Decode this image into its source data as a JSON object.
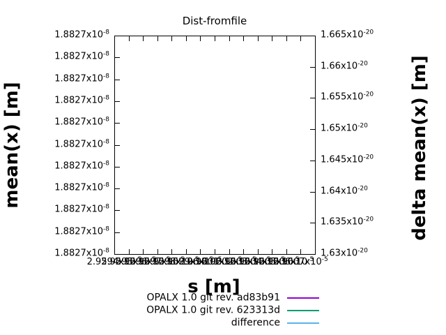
{
  "title": "Dist-fromfile",
  "axes": {
    "x": {
      "label": "s [m]",
      "ticks": [
        {
          "m": "2.9594x10",
          "e": "-5"
        },
        {
          "m": "2.9595x10",
          "e": "-5"
        },
        {
          "m": "2.9596x10",
          "e": "-5"
        },
        {
          "m": "2.9597x10",
          "e": "-5"
        },
        {
          "m": "2.9598x10",
          "e": "-5"
        },
        {
          "m": "2.9599x10",
          "e": "-5"
        },
        {
          "m": "2.96x10",
          "e": "-5"
        },
        {
          "m": "2.9601x10",
          "e": "-5"
        },
        {
          "m": "2.9602x10",
          "e": "-5"
        },
        {
          "m": "2.9603x10",
          "e": "-5"
        },
        {
          "m": "2.9604x10",
          "e": "-5"
        },
        {
          "m": "2.9605x10",
          "e": "-5"
        },
        {
          "m": "2.9606x10",
          "e": "-5"
        },
        {
          "m": "2.9607x10",
          "e": "-5"
        }
      ]
    },
    "y_left": {
      "label": "mean(x) [m]",
      "ticks": [
        {
          "m": "1.8827x10",
          "e": "-8"
        },
        {
          "m": "1.8827x10",
          "e": "-8"
        },
        {
          "m": "1.8827x10",
          "e": "-8"
        },
        {
          "m": "1.8827x10",
          "e": "-8"
        },
        {
          "m": "1.8827x10",
          "e": "-8"
        },
        {
          "m": "1.8827x10",
          "e": "-8"
        },
        {
          "m": "1.8827x10",
          "e": "-8"
        },
        {
          "m": "1.8827x10",
          "e": "-8"
        },
        {
          "m": "1.8827x10",
          "e": "-8"
        },
        {
          "m": "1.8827x10",
          "e": "-8"
        },
        {
          "m": "1.8827x10",
          "e": "-8"
        }
      ]
    },
    "y_right": {
      "label": "delta mean(x) [m]",
      "ticks": [
        {
          "m": "1.665x10",
          "e": "-20"
        },
        {
          "m": "1.66x10",
          "e": "-20"
        },
        {
          "m": "1.655x10",
          "e": "-20"
        },
        {
          "m": "1.65x10",
          "e": "-20"
        },
        {
          "m": "1.645x10",
          "e": "-20"
        },
        {
          "m": "1.64x10",
          "e": "-20"
        },
        {
          "m": "1.635x10",
          "e": "-20"
        },
        {
          "m": "1.63x10",
          "e": "-20"
        }
      ]
    }
  },
  "legend": {
    "items": [
      {
        "label": "OPALX 1.0 git rev. ad83b91",
        "color": "#9400d3"
      },
      {
        "label": "OPALX 1.0 git rev. 623313d",
        "color": "#009e73"
      },
      {
        "label": "difference",
        "color": "#56b4e9"
      }
    ]
  },
  "colors": {
    "background": "#ffffff",
    "axis": "#000000",
    "series_purple": "#9400d3",
    "series_green": "#009e73",
    "series_blue": "#56b4e9"
  },
  "chart_data": {
    "type": "line",
    "title": "Dist-fromfile",
    "xlabel": "s [m]",
    "ylabel_left": "mean(x) [m]",
    "ylabel_right": "delta mean(x) [m]",
    "x_ticks_displayed": [
      "2.9594x10^-5",
      "2.9595x10^-5",
      "2.9596x10^-5",
      "2.9597x10^-5",
      "2.9598x10^-5",
      "2.9599x10^-5",
      "2.96x10^-5",
      "2.9601x10^-5",
      "2.9602x10^-5",
      "2.9603x10^-5",
      "2.9604x10^-5",
      "2.9605x10^-5",
      "2.9606x10^-5",
      "2.9607x10^-5"
    ],
    "y_left_ticks_displayed": [
      "1.8827x10^-8",
      "1.8827x10^-8",
      "1.8827x10^-8",
      "1.8827x10^-8",
      "1.8827x10^-8",
      "1.8827x10^-8",
      "1.8827x10^-8",
      "1.8827x10^-8",
      "1.8827x10^-8",
      "1.8827x10^-8",
      "1.8827x10^-8"
    ],
    "y_right_ticks_displayed": [
      "1.665x10^-20",
      "1.66x10^-20",
      "1.655x10^-20",
      "1.65x10^-20",
      "1.645x10^-20",
      "1.64x10^-20",
      "1.635x10^-20",
      "1.63x10^-20"
    ],
    "y_right_range": [
      1.63e-20,
      1.665e-20
    ],
    "grid": false,
    "legend_position": "below-plot",
    "plot_area_empty": true,
    "series": [
      {
        "name": "OPALX 1.0 git rev. ad83b91",
        "color": "#9400d3",
        "values": []
      },
      {
        "name": "OPALX 1.0 git rev. 623313d",
        "color": "#009e73",
        "values": []
      },
      {
        "name": "difference",
        "color": "#56b4e9",
        "values": []
      }
    ]
  }
}
